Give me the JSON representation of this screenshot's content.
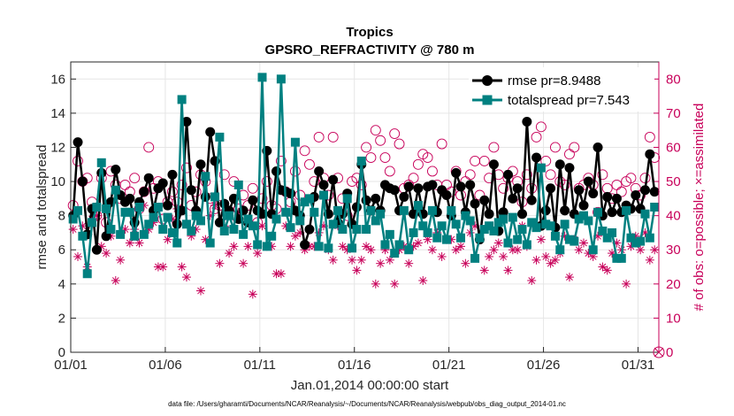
{
  "chart_data": {
    "type": "line",
    "title": "Tropics",
    "subtitle": "GPSRO_REFRACTIVITY @ 780 m",
    "xlabel": "Jan.01,2014 00:00:00 start",
    "ylabel": "rmse and totalspread",
    "y2label": "# of obs: o=possible; ×=assimilated",
    "footnote": "data file: /Users/gharamti/Documents/NCAR/Reanalysis/~/Documents/NCAR/Reanalysis/webpub/obs_diag_output_2014-01.nc",
    "x_tick_labels": [
      "01/01",
      "01/06",
      "01/11",
      "01/16",
      "01/21",
      "01/26",
      "01/31"
    ],
    "x_tick_days": [
      0,
      5,
      10,
      15,
      20,
      25,
      30
    ],
    "xlim": [
      0,
      31.1
    ],
    "ylim": [
      0,
      17
    ],
    "y_ticks": [
      0,
      2,
      4,
      6,
      8,
      10,
      12,
      14,
      16
    ],
    "y2lim": [
      0,
      85
    ],
    "y2_ticks": [
      0,
      10,
      20,
      30,
      40,
      50,
      60,
      70,
      80
    ],
    "grid": true,
    "legend_position": "top-right",
    "colors": {
      "rmse": "#000000",
      "totalspread": "#008080",
      "counts": "#c8005a"
    },
    "series": [
      {
        "name": "rmse",
        "legend": "rmse pr=8.9488",
        "marker": "circle",
        "x": [
          0.125,
          0.375,
          0.625,
          0.875,
          1.125,
          1.375,
          1.625,
          1.875,
          2.125,
          2.375,
          2.625,
          2.875,
          3.125,
          3.375,
          3.625,
          3.875,
          4.125,
          4.375,
          4.625,
          4.875,
          5.125,
          5.375,
          5.625,
          5.875,
          6.125,
          6.375,
          6.625,
          6.875,
          7.125,
          7.375,
          7.625,
          7.875,
          8.125,
          8.375,
          8.625,
          8.875,
          9.125,
          9.375,
          9.625,
          9.875,
          10.125,
          10.375,
          10.625,
          10.875,
          11.125,
          11.375,
          11.625,
          11.875,
          12.125,
          12.375,
          12.625,
          12.875,
          13.125,
          13.375,
          13.625,
          13.875,
          14.125,
          14.375,
          14.625,
          14.875,
          15.125,
          15.375,
          15.625,
          15.875,
          16.125,
          16.375,
          16.625,
          16.875,
          17.125,
          17.375,
          17.625,
          17.875,
          18.125,
          18.375,
          18.625,
          18.875,
          19.125,
          19.375,
          19.625,
          19.875,
          20.125,
          20.375,
          20.625,
          20.875,
          21.125,
          21.375,
          21.625,
          21.875,
          22.125,
          22.375,
          22.625,
          22.875,
          23.125,
          23.375,
          23.625,
          23.875,
          24.125,
          24.375,
          24.625,
          24.875,
          25.125,
          25.375,
          25.625,
          25.875,
          26.125,
          26.375,
          26.625,
          26.875,
          27.125,
          27.375,
          27.625,
          27.875,
          28.125,
          28.375,
          28.625,
          28.875,
          29.125,
          29.375,
          29.625,
          29.875,
          30.125,
          30.375,
          30.625,
          30.875
        ],
        "values": [
          8.0,
          12.3,
          10.0,
          6.9,
          8.4,
          6.0,
          10.5,
          6.8,
          8.8,
          10.7,
          9.2,
          8.8,
          9.0,
          7.6,
          8.8,
          9.4,
          10.2,
          8.3,
          9.6,
          9.9,
          8.6,
          10.4,
          7.5,
          8.3,
          13.5,
          9.5,
          8.3,
          11.0,
          9.1,
          12.9,
          11.2,
          7.6,
          8.7,
          8.3,
          9.0,
          7.8,
          8.3,
          7.6,
          8.9,
          8.3,
          8.1,
          11.8,
          8.1,
          10.6,
          9.5,
          9.4,
          9.3,
          8.3,
          8.0,
          6.3,
          7.2,
          9.1,
          10.6,
          9.8,
          8.1,
          10.1,
          7.6,
          8.1,
          9.3,
          7.5,
          8.5,
          11.0,
          8.9,
          8.3,
          9.0,
          8.3,
          9.8,
          9.6,
          9.5,
          8.3,
          9.1,
          9.7,
          8.1,
          9.6,
          8.1,
          9.7,
          9.8,
          8.2,
          9.5,
          9.2,
          8.0,
          10.5,
          9.7,
          8.2,
          9.8,
          8.7,
          6.6,
          8.9,
          8.1,
          11.0,
          7.1,
          8.2,
          10.4,
          9.0,
          9.6,
          8.1,
          13.5,
          8.9,
          11.4,
          7.4,
          8.3,
          9.6,
          7.3,
          11.0,
          8.3,
          10.8,
          8.1,
          9.5,
          8.6,
          10.0,
          9.3,
          12.0,
          8.0,
          9.1,
          8.2,
          9.0,
          8.2,
          8.6,
          8.4,
          9.2,
          8.4,
          9.5,
          11.6,
          9.4
        ]
      },
      {
        "name": "totalspread",
        "legend": "totalspread pr=7.543",
        "marker": "square",
        "x": [
          0.125,
          0.375,
          0.625,
          0.875,
          1.125,
          1.375,
          1.625,
          1.875,
          2.125,
          2.375,
          2.625,
          2.875,
          3.125,
          3.375,
          3.625,
          3.875,
          4.125,
          4.375,
          4.625,
          4.875,
          5.125,
          5.375,
          5.625,
          5.875,
          6.125,
          6.375,
          6.625,
          6.875,
          7.125,
          7.375,
          7.625,
          7.875,
          8.125,
          8.375,
          8.625,
          8.875,
          9.125,
          9.375,
          9.625,
          9.875,
          10.125,
          10.375,
          10.625,
          10.875,
          11.125,
          11.375,
          11.625,
          11.875,
          12.125,
          12.375,
          12.625,
          12.875,
          13.125,
          13.375,
          13.625,
          13.875,
          14.125,
          14.375,
          14.625,
          14.875,
          15.125,
          15.375,
          15.625,
          15.875,
          16.125,
          16.375,
          16.625,
          16.875,
          17.125,
          17.375,
          17.625,
          17.875,
          18.125,
          18.375,
          18.625,
          18.875,
          19.125,
          19.375,
          19.625,
          19.875,
          20.125,
          20.375,
          20.625,
          20.875,
          21.125,
          21.375,
          21.625,
          21.875,
          22.125,
          22.375,
          22.625,
          22.875,
          23.125,
          23.375,
          23.625,
          23.875,
          24.125,
          24.375,
          24.625,
          24.875,
          25.125,
          25.375,
          25.625,
          25.875,
          26.125,
          26.375,
          26.625,
          26.875,
          27.125,
          27.375,
          27.625,
          27.875,
          28.125,
          28.375,
          28.625,
          28.875,
          29.125,
          29.375,
          29.625,
          29.875,
          30.125,
          30.375,
          30.625,
          30.875
        ],
        "values": [
          7.8,
          8.3,
          6.8,
          4.6,
          7.6,
          8.5,
          11.1,
          8.4,
          7.2,
          9.5,
          6.9,
          8.2,
          8.2,
          6.8,
          8.5,
          6.9,
          7.5,
          7.9,
          8.5,
          7.2,
          7.9,
          7.0,
          6.4,
          14.8,
          7.5,
          7.1,
          8.0,
          7.7,
          10.3,
          6.4,
          9.1,
          12.6,
          7.1,
          8.0,
          7.2,
          9.8,
          6.9,
          7.8,
          7.4,
          6.3,
          16.1,
          6.2,
          6.8,
          7.8,
          16.0,
          8.2,
          7.3,
          12.3,
          7.7,
          8.8,
          9.0,
          8.2,
          6.2,
          9.2,
          6.1,
          7.5,
          8.3,
          7.2,
          9.0,
          6.1,
          7.2,
          11.2,
          7.2,
          8.3,
          7.7,
          8.1,
          6.3,
          6.9,
          5.8,
          6.3,
          8.3,
          6.0,
          7.0,
          8.6,
          7.4,
          7.0,
          8.3,
          6.7,
          7.4,
          6.6,
          8.3,
          7.5,
          6.7,
          8.0,
          7.7,
          5.5,
          6.7,
          7.2,
          7.4,
          7.1,
          7.6,
          7.8,
          6.4,
          7.9,
          6.6,
          7.2,
          6.3,
          7.6,
          7.3,
          10.8,
          7.5,
          7.4,
          6.8,
          6.0,
          7.5,
          6.6,
          6.5,
          7.8,
          8.0,
          7.7,
          6.0,
          8.2,
          7.1,
          6.7,
          7.0,
          5.5,
          5.5,
          8.3,
          6.7,
          6.4,
          6.5,
          8.1,
          6.7,
          8.5
        ]
      },
      {
        "name": "obs_possible",
        "axis": "right",
        "marker": "open-circle",
        "x": [
          0.125,
          0.375,
          0.625,
          0.875,
          1.125,
          1.375,
          1.625,
          1.875,
          2.125,
          2.375,
          2.625,
          2.875,
          3.125,
          3.375,
          3.625,
          3.875,
          4.125,
          4.375,
          4.625,
          4.875,
          5.125,
          5.375,
          5.625,
          5.875,
          6.125,
          6.375,
          6.625,
          6.875,
          7.125,
          7.375,
          7.625,
          7.875,
          8.125,
          8.375,
          8.625,
          8.875,
          9.125,
          9.375,
          9.625,
          9.875,
          10.125,
          10.375,
          10.625,
          10.875,
          11.125,
          11.375,
          11.625,
          11.875,
          12.125,
          12.375,
          12.625,
          12.875,
          13.125,
          13.375,
          13.625,
          13.875,
          14.125,
          14.375,
          14.625,
          14.875,
          15.125,
          15.375,
          15.625,
          15.875,
          16.125,
          16.375,
          16.625,
          16.875,
          17.125,
          17.375,
          17.625,
          17.875,
          18.125,
          18.375,
          18.625,
          18.875,
          19.125,
          19.375,
          19.625,
          19.875,
          20.125,
          20.375,
          20.625,
          20.875,
          21.125,
          21.375,
          21.625,
          21.875,
          22.125,
          22.375,
          22.625,
          22.875,
          23.125,
          23.375,
          23.625,
          23.875,
          24.125,
          24.375,
          24.625,
          24.875,
          25.125,
          25.375,
          25.625,
          25.875,
          26.125,
          26.375,
          26.625,
          26.875,
          27.125,
          27.375,
          27.625,
          27.875,
          28.125,
          28.375,
          28.625,
          28.875,
          29.125,
          29.375,
          29.625,
          29.875,
          30.125,
          30.375,
          30.625,
          30.875
        ],
        "values": [
          43,
          56,
          50,
          51,
          44,
          40,
          51,
          38,
          53,
          49,
          45,
          49,
          47,
          51,
          42,
          47,
          60,
          48,
          50,
          39,
          44,
          47,
          44,
          49,
          54,
          43,
          47,
          52,
          50,
          45,
          42,
          43,
          52,
          38,
          50,
          42,
          46,
          43,
          48,
          38,
          45,
          50,
          43,
          42,
          56,
          47,
          44,
          53,
          46,
          59,
          55,
          50,
          63,
          51,
          46,
          63,
          51,
          45,
          40,
          50,
          51,
          49,
          60,
          57,
          65,
          62,
          57,
          53,
          64,
          61,
          48,
          49,
          51,
          55,
          58,
          57,
          53,
          49,
          61,
          49,
          47,
          53,
          46,
          50,
          52,
          56,
          46,
          56,
          51,
          60,
          52,
          48,
          51,
          53,
          50,
          44,
          52,
          48,
          63,
          66,
          56,
          52,
          60,
          50,
          49,
          58,
          60,
          48,
          49,
          51,
          49,
          41,
          52,
          48,
          45,
          49,
          47,
          50,
          51,
          48,
          46,
          51,
          63,
          57
        ]
      },
      {
        "name": "obs_assimilated",
        "axis": "right",
        "marker": "asterisk",
        "x": [
          0.125,
          0.375,
          0.625,
          0.875,
          1.125,
          1.375,
          1.625,
          1.875,
          2.125,
          2.375,
          2.625,
          2.875,
          3.125,
          3.375,
          3.625,
          3.875,
          4.125,
          4.375,
          4.625,
          4.875,
          5.125,
          5.375,
          5.625,
          5.875,
          6.125,
          6.375,
          6.625,
          6.875,
          7.125,
          7.375,
          7.625,
          7.875,
          8.125,
          8.375,
          8.625,
          8.875,
          9.125,
          9.375,
          9.625,
          9.875,
          10.125,
          10.375,
          10.625,
          10.875,
          11.125,
          11.375,
          11.625,
          11.875,
          12.125,
          12.375,
          12.625,
          12.875,
          13.125,
          13.375,
          13.625,
          13.875,
          14.125,
          14.375,
          14.625,
          14.875,
          15.125,
          15.375,
          15.625,
          15.875,
          16.125,
          16.375,
          16.625,
          16.875,
          17.125,
          17.375,
          17.625,
          17.875,
          18.125,
          18.375,
          18.625,
          18.875,
          19.125,
          19.375,
          19.625,
          19.875,
          20.125,
          20.375,
          20.625,
          20.875,
          21.125,
          21.375,
          21.625,
          21.875,
          22.125,
          22.375,
          22.625,
          22.875,
          23.125,
          23.375,
          23.625,
          23.875,
          24.125,
          24.375,
          24.625,
          24.875,
          25.125,
          25.375,
          25.625,
          25.875,
          26.125,
          26.375,
          26.625,
          26.875,
          27.125,
          27.375,
          27.625,
          27.875,
          28.125,
          28.375,
          28.625,
          28.875,
          29.125,
          29.375,
          29.625,
          29.875,
          30.125,
          30.375,
          30.625,
          30.875
        ],
        "values": [
          36,
          28,
          37,
          25,
          39,
          40,
          31,
          29,
          34,
          21,
          27,
          36,
          32,
          36,
          32,
          43,
          36,
          38,
          25,
          25,
          33,
          39,
          42,
          25,
          22,
          34,
          36,
          18,
          33,
          40,
          43,
          26,
          37,
          29,
          31,
          41,
          26,
          31,
          17,
          29,
          37,
          31,
          31,
          23,
          23,
          37,
          31,
          34,
          35,
          30,
          31,
          31,
          35,
          37,
          30,
          27,
          37,
          31,
          30,
          27,
          24,
          27,
          31,
          30,
          20,
          26,
          30,
          27,
          20,
          30,
          31,
          26,
          31,
          32,
          21,
          33,
          30,
          35,
          28,
          33,
          33,
          30,
          31,
          26,
          35,
          37,
          33,
          24,
          28,
          30,
          32,
          28,
          24,
          30,
          30,
          37,
          31,
          21,
          27,
          33,
          28,
          26,
          27,
          29,
          34,
          22,
          33,
          30,
          32,
          29,
          28,
          34,
          25,
          24,
          29,
          32,
          30,
          20,
          31,
          34,
          30,
          35,
          27,
          30
        ]
      }
    ],
    "annotation": "× at y2=0 on right edge"
  }
}
